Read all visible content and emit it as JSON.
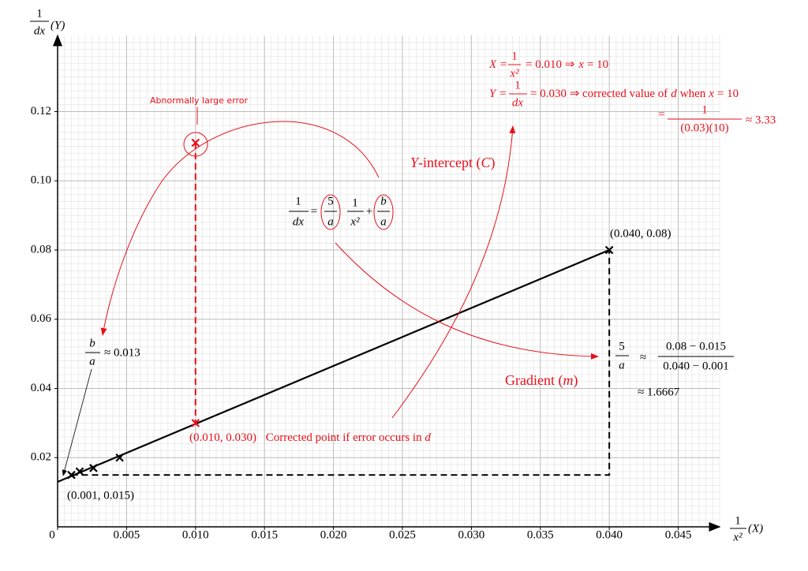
{
  "chart_data": {
    "type": "scatter",
    "x_label": {
      "num": "1",
      "den": "x²",
      "unit": "(X)"
    },
    "y_label": {
      "num": "1",
      "den": "dx",
      "unit": "(Y)"
    },
    "xlim": [
      0,
      0.048
    ],
    "ylim": [
      0,
      0.142
    ],
    "xticks": [
      {
        "value": 0,
        "label": "0"
      },
      0.005,
      {
        "value": 0.01,
        "label": "0.010"
      },
      0.015,
      {
        "value": 0.02,
        "label": "0.020"
      },
      0.025,
      {
        "value": 0.03,
        "label": "0.030"
      },
      0.035,
      {
        "value": 0.04,
        "label": "0.040"
      },
      0.045
    ],
    "yticks": [
      0.02,
      0.04,
      0.06,
      0.08,
      {
        "value": 0.1,
        "label": "0.10"
      },
      0.12
    ],
    "grid": true,
    "minor_grid": {
      "x": 0.0005,
      "y": 0.002
    },
    "series": [
      {
        "color": "#000000",
        "x": [
          0.001,
          0.0016,
          0.0026,
          0.0045,
          0.04
        ],
        "values": [
          0.015,
          0.016,
          0.017,
          0.02,
          0.08
        ]
      },
      {
        "color": "#e8101a",
        "x": [
          0.01
        ],
        "values": [
          0.111
        ]
      },
      {
        "color": "#e8101a",
        "x": [
          0.01
        ],
        "values": [
          0.03
        ]
      }
    ],
    "lines": [
      {
        "color": "#000000",
        "style": "solid",
        "x": [
          0,
          0.04
        ],
        "values": [
          0.013,
          0.08
        ]
      },
      {
        "color": "#000000",
        "style": "dashed",
        "x": [
          0.001,
          0.04,
          0.04
        ],
        "values": [
          0.015,
          0.015,
          0.08
        ]
      },
      {
        "color": "#e8101a",
        "style": "dashed",
        "x": [
          0.01,
          0.01
        ],
        "values": [
          0.111,
          0.03
        ]
      }
    ],
    "annotations": {
      "abnormal": "Abnormally large error",
      "end_point": "(0.040, 0.08)",
      "start_point": "(0.001, 0.015)",
      "corrected_point": "(0.010, 0.030)",
      "corrected_text": "Corrected point if error occurs in",
      "corrected_var": "d",
      "intercept": {
        "var": "Y",
        "text": "-intercept (",
        "sym": "C",
        "close": ")"
      },
      "gradient": {
        "text": "Gradient (",
        "sym": "m",
        "close": ")"
      },
      "equation": {
        "lhs_num": "1",
        "lhs_den": "dx",
        "eq": "=",
        "m_num": "5",
        "m_den": "a",
        "x_num": "1",
        "x_den": "x²",
        "plus": "+",
        "c_num": "b",
        "c_den": "a"
      },
      "c_value": {
        "num": "b",
        "den": "a",
        "approx": "≈ 0.013"
      },
      "m_value": {
        "num": "5",
        "den": "a",
        "approx": "≈",
        "f_num": "0.08 − 0.015",
        "f_den": "0.040 − 0.001",
        "result": "≈ 1.6667"
      },
      "x_calc": {
        "lhs": "X =",
        "num": "1",
        "den": "x²",
        "rhs": "= 0.010 ⇒",
        "var": "x",
        "tail": "= 10"
      },
      "y_calc": {
        "lhs": "Y =",
        "num": "1",
        "den": "dx",
        "rhs": "= 0.030 ⇒ corrected value of",
        "var": "d",
        "mid": "when",
        "var2": "x",
        "tail": "= 10"
      },
      "d_calc": {
        "eq": "=",
        "num": "1",
        "den": "(0.03)(10)",
        "result": "≈ 3.33"
      }
    }
  }
}
